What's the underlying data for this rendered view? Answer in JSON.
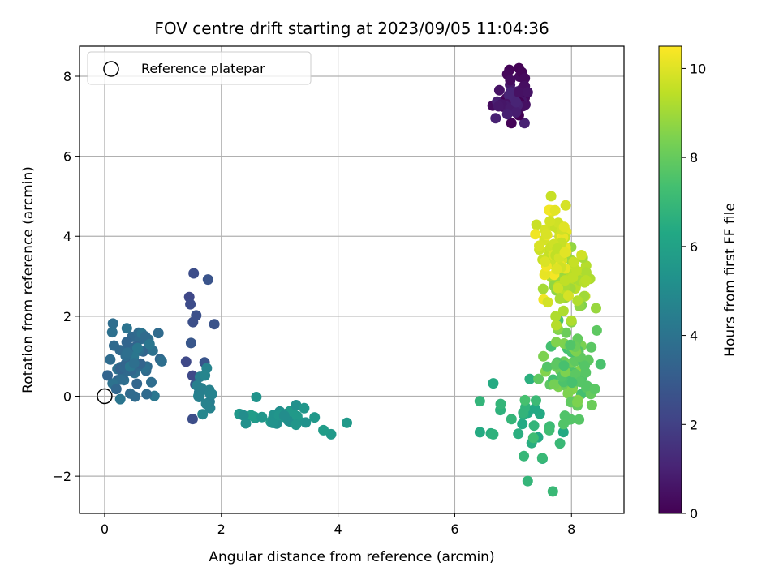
{
  "chart_data": {
    "type": "scatter",
    "title": "FOV centre drift starting at 2023/09/05 11:04:36",
    "xlabel": "Angular distance from reference (arcmin)",
    "ylabel": "Rotation from reference (arcmin)",
    "colorbar_label": "Hours from first FF file",
    "colormap": "viridis",
    "xlim": [
      -0.43,
      8.9
    ],
    "ylim": [
      -2.93,
      8.75
    ],
    "clim": [
      0,
      10.5
    ],
    "xticks": [
      0,
      2,
      4,
      6,
      8
    ],
    "yticks": [
      -2,
      0,
      2,
      4,
      6,
      8
    ],
    "cticks": [
      0,
      2,
      4,
      6,
      8,
      10
    ],
    "xtick_labels": [
      "0",
      "2",
      "4",
      "6",
      "8"
    ],
    "ytick_labels": [
      "−2",
      "0",
      "2",
      "4",
      "6",
      "8"
    ],
    "ctick_labels": [
      "0",
      "2",
      "4",
      "6",
      "8",
      "10"
    ],
    "grid": true,
    "legend": {
      "position": "top-left",
      "label": "Reference platepar"
    },
    "reference": {
      "x": 0.0,
      "y": 0.0
    },
    "clusters": [
      {
        "cx": 7.0,
        "cy": 7.45,
        "sx": 0.17,
        "sy": 0.35,
        "n": 28,
        "h0": 0.0,
        "h1": 1.1,
        "pts": [
          [
            7.1,
            8.2
          ],
          [
            7.15,
            8.1
          ],
          [
            6.9,
            8.05
          ],
          [
            7.2,
            7.95
          ],
          [
            6.95,
            7.9
          ],
          [
            7.2,
            7.75
          ],
          [
            7.1,
            7.6
          ],
          [
            7.25,
            7.6
          ],
          [
            6.8,
            7.3
          ],
          [
            6.75,
            7.25
          ],
          [
            6.95,
            7.2
          ],
          [
            7.05,
            7.1
          ],
          [
            6.9,
            7.05
          ],
          [
            6.7,
            6.95
          ],
          [
            7.05,
            7.35
          ]
        ]
      },
      {
        "cx": 1.55,
        "cy": 1.6,
        "sx": 0.15,
        "sy": 0.9,
        "n": 8,
        "h0": 2.2,
        "h1": 2.9,
        "pts": [
          [
            1.45,
            2.48
          ],
          [
            1.47,
            2.3
          ],
          [
            1.57,
            2.02
          ],
          [
            1.88,
            1.8
          ],
          [
            1.48,
            1.33
          ]
        ]
      },
      {
        "cx": 0.45,
        "cy": 0.85,
        "sx": 0.2,
        "sy": 0.38,
        "n": 62,
        "h0": 3.3,
        "h1": 4.2,
        "pts": [
          [
            0.05,
            0.52
          ],
          [
            0.2,
            0.18
          ],
          [
            0.72,
            0.05
          ],
          [
            0.8,
            0.35
          ],
          [
            0.13,
            1.6
          ],
          [
            0.38,
            1.7
          ],
          [
            0.77,
            1.3
          ]
        ]
      },
      {
        "cx": 1.7,
        "cy": 0.05,
        "sx": 0.1,
        "sy": 0.25,
        "n": 8,
        "h0": 4.4,
        "h1": 4.8,
        "pts": [
          [
            1.62,
            0.1
          ],
          [
            1.66,
            0.2
          ],
          [
            1.62,
            -0.02
          ],
          [
            1.8,
            0.08
          ],
          [
            1.84,
            0.05
          ],
          [
            1.75,
            0.7
          ],
          [
            1.72,
            0.52
          ],
          [
            1.68,
            -0.45
          ]
        ]
      },
      {
        "cx": 3.0,
        "cy": -0.5,
        "sx": 0.4,
        "sy": 0.15,
        "n": 30,
        "h0": 5.0,
        "h1": 5.8,
        "pts": [
          [
            2.38,
            -0.48
          ],
          [
            2.42,
            -0.68
          ],
          [
            2.6,
            -0.02
          ],
          [
            3.42,
            -0.3
          ],
          [
            3.88,
            -0.95
          ],
          [
            3.75,
            -0.85
          ]
        ]
      },
      {
        "cx": 7.3,
        "cy": -0.7,
        "sx": 0.25,
        "sy": 0.5,
        "n": 26,
        "h0": 6.3,
        "h1": 7.3,
        "pts": [
          [
            6.43,
            -0.9
          ],
          [
            6.62,
            -0.93
          ],
          [
            6.66,
            -0.95
          ],
          [
            7.25,
            -2.12
          ],
          [
            7.68,
            -2.38
          ],
          [
            7.62,
            -0.85
          ]
        ]
      },
      {
        "cx": 7.95,
        "cy": 0.75,
        "sx": 0.22,
        "sy": 0.55,
        "n": 75,
        "h0": 7.3,
        "h1": 8.6,
        "pts": [
          [
            8.5,
            0.8
          ],
          [
            8.4,
            0.18
          ],
          [
            8.35,
            -0.22
          ],
          [
            8.1,
            -0.15
          ]
        ]
      },
      {
        "cx": 7.9,
        "cy": 2.7,
        "sx": 0.18,
        "sy": 0.6,
        "n": 55,
        "h0": 8.6,
        "h1": 9.7,
        "pts": [
          [
            8.42,
            2.2
          ],
          [
            8.25,
            2.9
          ]
        ]
      },
      {
        "cx": 7.68,
        "cy": 3.7,
        "sx": 0.15,
        "sy": 0.45,
        "n": 65,
        "h0": 9.5,
        "h1": 10.4,
        "pts": [
          [
            7.65,
            5.0
          ],
          [
            7.9,
            4.77
          ],
          [
            7.72,
            4.65
          ],
          [
            7.38,
            4.05
          ]
        ]
      }
    ]
  }
}
